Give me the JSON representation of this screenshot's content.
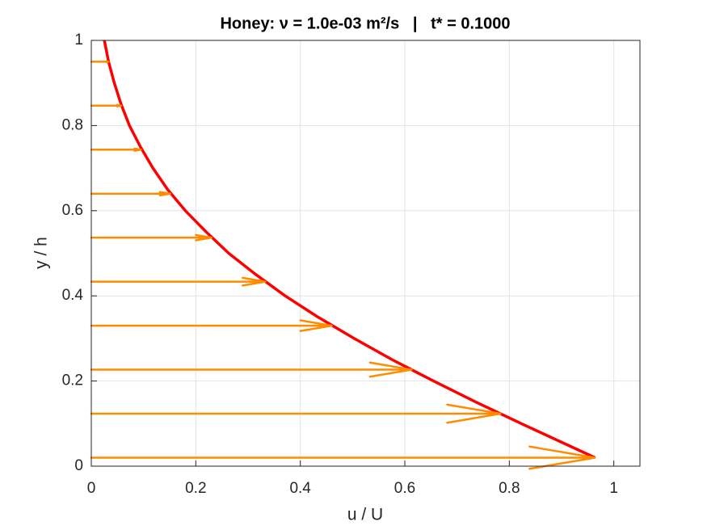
{
  "chart_data": {
    "type": "quiver",
    "title": "Honey: ν = 1.0e-03 m²/s   |   t* = 0.1000",
    "x_label": "u / U",
    "y_label": "y / h",
    "xlim": [
      0,
      1.05
    ],
    "ylim": [
      0,
      1
    ],
    "xticks": [
      0,
      0.2,
      0.4,
      0.6,
      0.8,
      1
    ],
    "yticks": [
      0,
      0.2,
      0.4,
      0.6,
      0.8,
      1
    ],
    "grid": true,
    "curve": {
      "color": "#ff0000",
      "x": [
        0.964,
        0.911,
        0.823,
        0.737,
        0.655,
        0.576,
        0.503,
        0.434,
        0.371,
        0.315,
        0.263,
        0.22,
        0.18,
        0.146,
        0.118,
        0.094,
        0.073,
        0.057,
        0.044,
        0.033,
        0.025
      ],
      "y": [
        0.02,
        0.05,
        0.1,
        0.15,
        0.2,
        0.25,
        0.3,
        0.35,
        0.4,
        0.45,
        0.5,
        0.55,
        0.6,
        0.65,
        0.7,
        0.75,
        0.8,
        0.85,
        0.9,
        0.95,
        1.0
      ]
    },
    "arrows": {
      "color": "#ff8c00",
      "y": [
        0.02,
        0.1233,
        0.2267,
        0.33,
        0.4333,
        0.5367,
        0.64,
        0.7433,
        0.8467,
        0.95
      ],
      "u": [
        0.964,
        0.783,
        0.613,
        0.46,
        0.333,
        0.23,
        0.151,
        0.095,
        0.057,
        0.033
      ]
    }
  }
}
